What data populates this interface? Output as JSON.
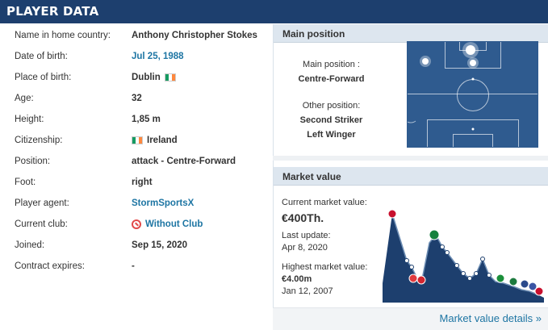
{
  "header": {
    "title": "PLAYER DATA"
  },
  "player": {
    "rows": [
      {
        "label": "Name in home country:",
        "value": "Anthony Christopher Stokes"
      },
      {
        "label": "Date of birth:",
        "value": "Jul 25, 1988"
      },
      {
        "label": "Place of birth:",
        "value": "Dublin"
      },
      {
        "label": "Age:",
        "value": "32"
      },
      {
        "label": "Height:",
        "value": "1,85 m"
      },
      {
        "label": "Citizenship:",
        "value": "Ireland"
      },
      {
        "label": "Position:",
        "value": "attack - Centre-Forward"
      },
      {
        "label": "Foot:",
        "value": "right"
      },
      {
        "label": "Player agent:",
        "value": "StormSportsX"
      },
      {
        "label": "Current club:",
        "value": "Without Club"
      },
      {
        "label": "Joined:",
        "value": "Sep 15, 2020"
      },
      {
        "label": "Contract expires:",
        "value": "-"
      }
    ]
  },
  "main_position": {
    "title": "Main position",
    "main_label": "Main position :",
    "main_value": "Centre-Forward",
    "other_label": "Other position:",
    "other_values": [
      "Second Striker",
      "Left Winger"
    ]
  },
  "market_value": {
    "title": "Market value",
    "current_label": "Current market value:",
    "current_value": "€400Th.",
    "update_label": "Last update:",
    "update_date": "Apr 8, 2020",
    "highest_label": "Highest market value:",
    "highest_value": "€4.00m",
    "highest_date": "Jan 12, 2007",
    "details_link": "Market value details »"
  },
  "colors": {
    "header_bg": "#1d3f6e",
    "link": "#1d75a3",
    "pitch": "#2f5b8f",
    "chart_area": "#1d3f6e"
  }
}
